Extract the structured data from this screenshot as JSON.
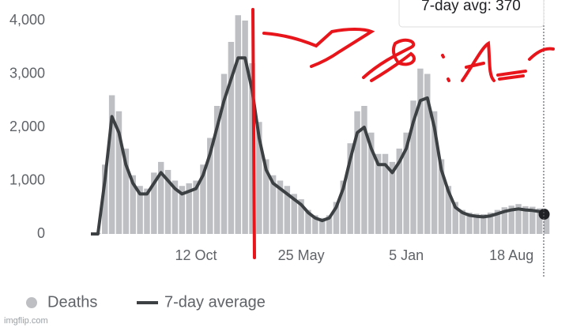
{
  "chart_data": {
    "type": "bar-line",
    "categories": [
      null,
      null,
      null,
      null,
      null,
      null,
      null,
      null,
      null,
      null,
      null,
      null,
      null,
      null,
      null,
      "12 Oct",
      null,
      null,
      null,
      null,
      null,
      null,
      null,
      null,
      null,
      null,
      null,
      null,
      null,
      null,
      "25 May",
      null,
      null,
      null,
      null,
      null,
      null,
      null,
      null,
      null,
      null,
      null,
      null,
      null,
      null,
      "5 Jan",
      null,
      null,
      null,
      null,
      null,
      null,
      null,
      null,
      null,
      null,
      null,
      null,
      null,
      null,
      "18 Aug",
      null,
      null,
      null,
      null,
      null
    ],
    "series": [
      {
        "name": "Deaths",
        "color": "#bdbfc3",
        "values": [
          0,
          20,
          1300,
          2600,
          2300,
          1600,
          1100,
          900,
          850,
          1150,
          1350,
          1200,
          1000,
          900,
          950,
          1000,
          1300,
          1800,
          2400,
          3000,
          3600,
          4100,
          4000,
          3200,
          2100,
          1400,
          1100,
          1000,
          900,
          750,
          650,
          450,
          350,
          300,
          350,
          600,
          1000,
          1700,
          2300,
          2400,
          1900,
          1500,
          1500,
          1350,
          1600,
          1900,
          2500,
          3100,
          3000,
          2300,
          1400,
          900,
          600,
          450,
          400,
          380,
          370,
          400,
          450,
          500,
          530,
          560,
          520,
          510,
          480,
          400
        ]
      },
      {
        "name": "7-day average",
        "color": "#3c4043",
        "values": [
          0,
          0,
          1000,
          2200,
          1900,
          1300,
          950,
          750,
          750,
          950,
          1150,
          1000,
          850,
          750,
          800,
          850,
          1100,
          1500,
          2000,
          2500,
          2900,
          3300,
          3300,
          2700,
          1800,
          1200,
          950,
          850,
          750,
          650,
          550,
          400,
          300,
          250,
          300,
          500,
          850,
          1400,
          1900,
          2000,
          1600,
          1300,
          1300,
          1150,
          1350,
          1600,
          2100,
          2500,
          2550,
          2000,
          1200,
          800,
          500,
          400,
          350,
          330,
          320,
          340,
          380,
          420,
          450,
          470,
          450,
          440,
          420,
          370
        ]
      }
    ],
    "ylim": [
      0,
      4400
    ],
    "yticks": [
      0,
      {
        "value": 1000,
        "label": "1,000"
      },
      {
        "value": 2000,
        "label": "2,000"
      },
      {
        "value": 3000,
        "label": "3,000"
      },
      {
        "value": 4000,
        "label": "4,000"
      }
    ],
    "grid": false,
    "tooltip": "7-day avg: 370",
    "watermark": "imgflip.com"
  }
}
